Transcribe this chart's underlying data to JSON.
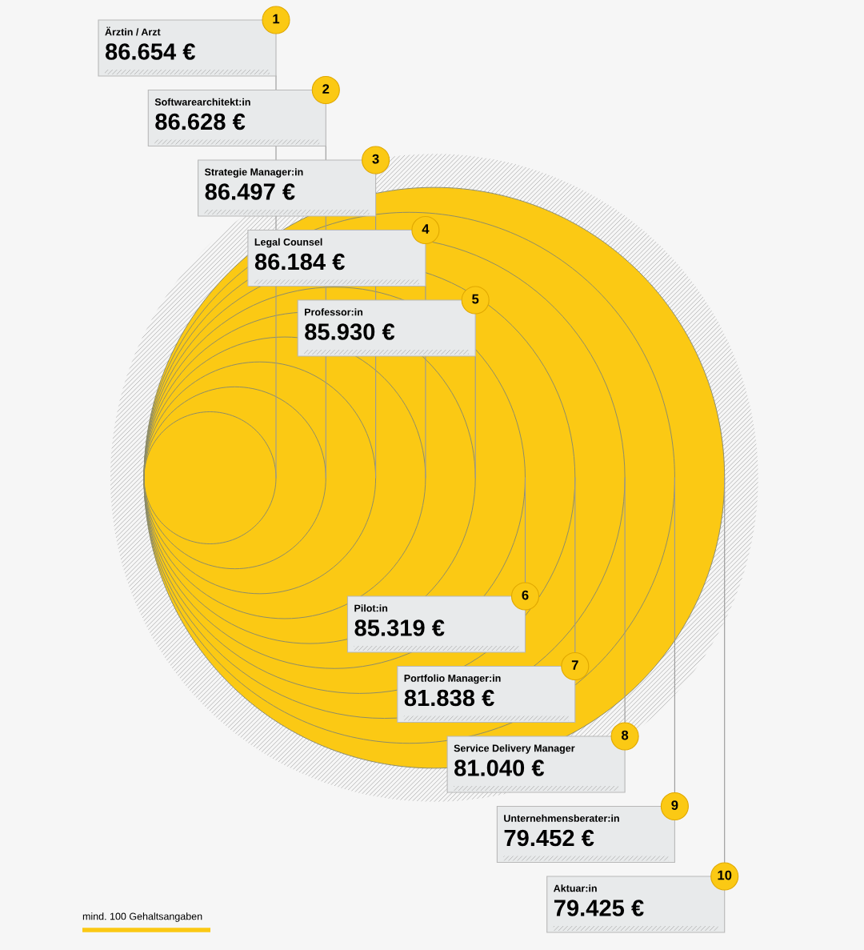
{
  "chart_data": {
    "type": "other",
    "categories": [
      "Ärztin / Arzt",
      "Softwarearchitekt:in",
      "Strategie Manager:in",
      "Legal Counsel",
      "Professor:in",
      "Pilot:in",
      "Portfolio Manager:in",
      "Service Delivery Manager",
      "Unternehmensberater:in",
      "Aktuar:in"
    ],
    "values": [
      86654,
      86628,
      86497,
      86184,
      85930,
      85319,
      81838,
      81040,
      79452,
      79425
    ],
    "value_labels": [
      "86.654 €",
      "86.628 €",
      "86.497 €",
      "86.184 €",
      "85.930 €",
      "85.319 €",
      "81.838 €",
      "81.040 €",
      "79.452 €",
      "79.425 €"
    ],
    "annotations": [
      "1",
      "2",
      "3",
      "4",
      "5",
      "6",
      "7",
      "8",
      "9",
      "10",
      "mind. 100 Gehaltsangaben"
    ]
  }
}
